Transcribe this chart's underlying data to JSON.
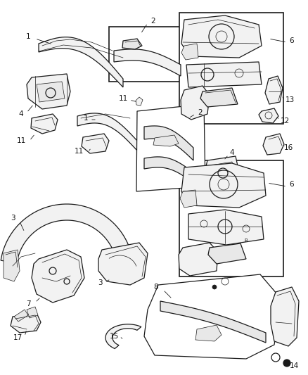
{
  "bg_color": "#ffffff",
  "line_color": "#1a1a1a",
  "label_color": "#111111",
  "font_size": 7.5,
  "fig_width": 4.39,
  "fig_height": 5.33,
  "dpi": 100
}
